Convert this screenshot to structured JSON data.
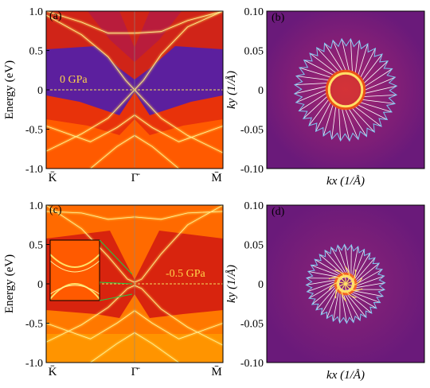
{
  "chart_data": [
    {
      "panel": "(a)",
      "type": "band_structure_heatmap",
      "ylabel": "Energy (eV)",
      "ylim": [
        -1.0,
        1.0
      ],
      "yticks": [
        "1.0",
        "0.5",
        "0",
        "-0.5",
        "-1.0"
      ],
      "xticks": [
        "K̄",
        "Γ̄",
        "M̄"
      ],
      "annotation": "0 GPa",
      "fermi_level_eV": 0,
      "dirac_point_eV": 0,
      "colormap": [
        "#5b1fa0",
        "#c2185b",
        "#ff3d00",
        "#ffb300",
        "#fff59d"
      ],
      "bands": [
        {
          "k": [
            -1,
            -0.6,
            -0.3,
            0,
            0.3,
            0.6,
            1
          ],
          "E": [
            1.0,
            0.86,
            0.72,
            0.72,
            0.74,
            0.88,
            1.0
          ]
        },
        {
          "k": [
            -1,
            -0.6,
            -0.3,
            -0.1,
            0
          ],
          "E": [
            0.95,
            0.7,
            0.42,
            0.12,
            0.0
          ]
        },
        {
          "k": [
            0,
            0.1,
            0.3,
            0.6,
            1
          ],
          "E": [
            0.0,
            0.12,
            0.45,
            0.8,
            1.0
          ]
        },
        {
          "k": [
            -1,
            -0.6,
            -0.3,
            -0.1,
            0
          ],
          "E": [
            -0.78,
            -0.56,
            -0.36,
            -0.12,
            0.0
          ]
        },
        {
          "k": [
            0,
            0.1,
            0.3,
            0.6,
            1
          ],
          "E": [
            0.0,
            -0.12,
            -0.36,
            -0.58,
            -0.8
          ]
        },
        {
          "k": [
            -1,
            -0.5,
            -0.2,
            0,
            0.2,
            0.5,
            1
          ],
          "E": [
            -0.46,
            -0.66,
            -0.48,
            -0.32,
            -0.48,
            -0.66,
            -0.46
          ]
        },
        {
          "k": [
            -0.5,
            -0.2,
            0,
            0.2,
            0.5
          ],
          "E": [
            -1.0,
            -0.72,
            -0.58,
            -0.72,
            -1.0
          ]
        }
      ]
    },
    {
      "panel": "(b)",
      "type": "spin_texture",
      "xlabel": "kx (1/Å)",
      "ylabel": "ky (1/Å)",
      "xlim": [
        -0.1,
        0.1
      ],
      "ylim": [
        -0.1,
        0.1
      ],
      "ticks": [
        "0.10",
        "0.05",
        "0",
        "-0.05",
        "-0.10"
      ],
      "contour_radius": 0.021,
      "contour_color": "#ffe066",
      "arrow_color": "#7ec8f0",
      "arrow_count": 36,
      "arrow_inner_radius": 0.025,
      "arrow_outer_radius": 0.065,
      "texture": "in-plane, tangential"
    },
    {
      "panel": "(c)",
      "type": "band_structure_heatmap",
      "ylabel": "Energy (eV)",
      "ylim": [
        -1.0,
        1.0
      ],
      "yticks": [
        "1.0",
        "0.5",
        "0",
        "-0.5",
        "-1.0"
      ],
      "xticks": [
        "K̄",
        "Γ̄",
        "M̄"
      ],
      "annotation": "-0.5 GPa",
      "fermi_level_eV": 0,
      "inset": "zoom near Γ̄",
      "bands": [
        {
          "k": [
            -1,
            -0.6,
            -0.3,
            -0.08,
            0
          ],
          "E": [
            1.0,
            0.7,
            0.35,
            0.06,
            0.02
          ]
        },
        {
          "k": [
            0,
            0.08,
            0.3,
            0.6,
            1
          ],
          "E": [
            0.02,
            0.06,
            0.38,
            0.75,
            1.0
          ]
        },
        {
          "k": [
            -1,
            -0.6,
            -0.3,
            -0.08,
            0
          ],
          "E": [
            -0.74,
            -0.52,
            -0.3,
            -0.06,
            -0.02
          ]
        },
        {
          "k": [
            0,
            0.08,
            0.3,
            0.6,
            1
          ],
          "E": [
            -0.02,
            -0.06,
            -0.32,
            -0.55,
            -0.78
          ]
        },
        {
          "k": [
            -1,
            -0.6,
            -0.3,
            0,
            0.3,
            0.6,
            1
          ],
          "E": [
            0.92,
            0.9,
            0.82,
            0.85,
            0.82,
            0.9,
            0.92
          ]
        },
        {
          "k": [
            -1,
            -0.5,
            -0.2,
            0,
            0.2,
            0.5,
            1
          ],
          "E": [
            -0.5,
            -0.7,
            -0.5,
            -0.34,
            -0.5,
            -0.7,
            -0.5
          ]
        },
        {
          "k": [
            -0.5,
            -0.2,
            0,
            0.2,
            0.5
          ],
          "E": [
            -1.0,
            -0.76,
            -0.62,
            -0.76,
            -1.0
          ]
        }
      ]
    },
    {
      "panel": "(d)",
      "type": "spin_texture",
      "xlabel": "kx (1/Å)",
      "ylabel": "ky (1/Å)",
      "xlim": [
        -0.1,
        0.1
      ],
      "ylim": [
        -0.1,
        0.1
      ],
      "ticks": [
        "0.10",
        "0.05",
        "0",
        "-0.05",
        "-0.10"
      ],
      "contour_radius": 0.01,
      "contour_color": "#ffe066",
      "arrow_color": "#7ec8f0",
      "arrow_count": 36,
      "arrow_inner_radius": 0.008,
      "arrow_outer_radius": 0.05,
      "texture": "swirling, vortex-like"
    }
  ]
}
